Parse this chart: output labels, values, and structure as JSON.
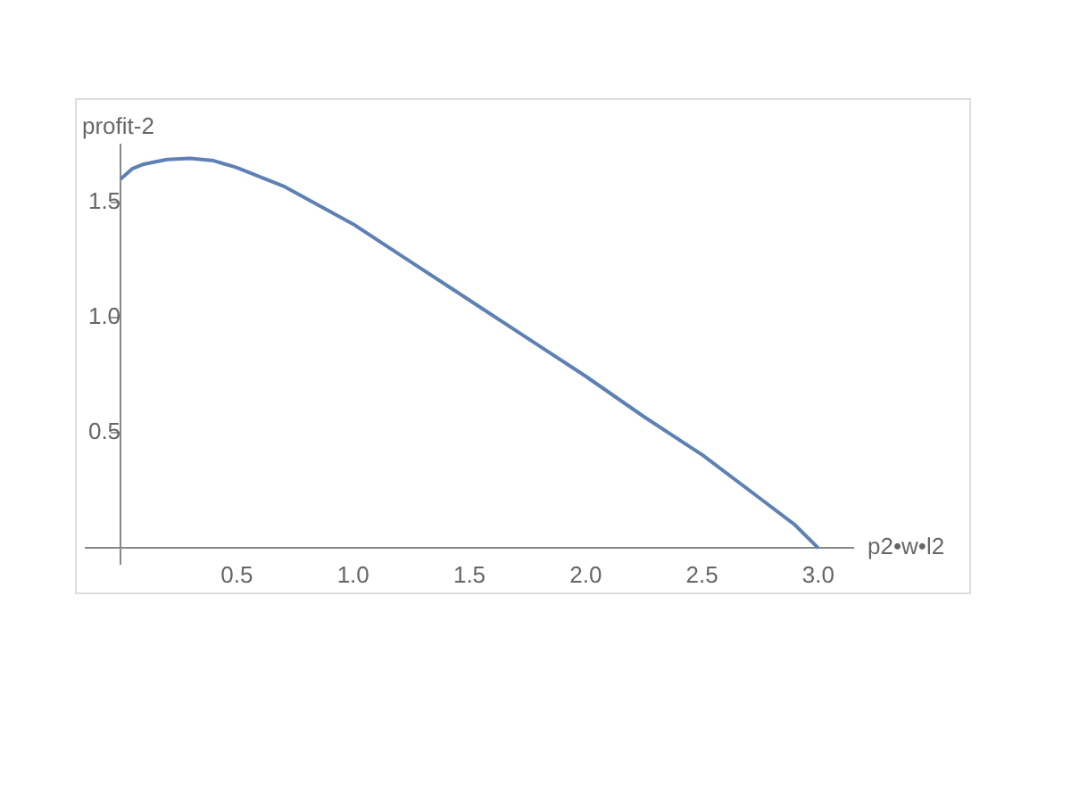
{
  "chart_data": {
    "type": "line",
    "xlabel": "p2•w•l2",
    "ylabel": "profit-2",
    "series": [
      {
        "color": "#5e81b5",
        "x": [
          0,
          0.05,
          0.1,
          0.2,
          0.3,
          0.4,
          0.5,
          0.7,
          1.0,
          1.25,
          1.5,
          1.75,
          2.0,
          2.25,
          2.5,
          2.75,
          2.9,
          3.0
        ],
        "values": [
          1.6,
          1.645,
          1.665,
          1.685,
          1.69,
          1.68,
          1.65,
          1.57,
          1.405,
          1.24,
          1.075,
          0.91,
          0.745,
          0.57,
          0.405,
          0.215,
          0.1,
          0
        ]
      }
    ],
    "xlim": [
      -0.15,
      3.15
    ],
    "ylim": [
      -0.07,
      1.75
    ],
    "xticks": [
      {
        "value": 0.5,
        "label": "0.5"
      },
      {
        "value": 1,
        "label": "1.0"
      },
      {
        "value": 1.5,
        "label": "1.5"
      },
      {
        "value": 2,
        "label": "2.0"
      },
      {
        "value": 2.5,
        "label": "2.5"
      },
      {
        "value": 3,
        "label": "3.0"
      }
    ],
    "yticks": [
      {
        "value": 0.5,
        "label": "0.5"
      },
      {
        "value": 1,
        "label": "1.0"
      },
      {
        "value": 1.5,
        "label": "1.5"
      }
    ],
    "grid": false,
    "legend": false,
    "marker": "none",
    "line_style": "solid"
  }
}
